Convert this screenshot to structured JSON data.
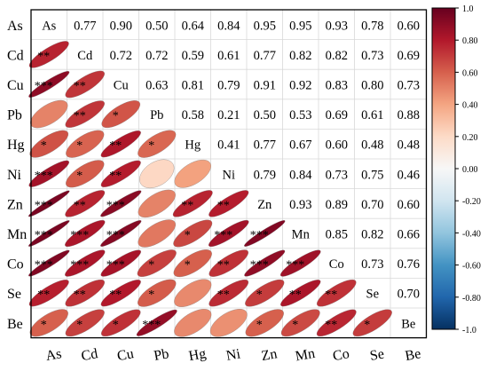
{
  "chart_data": {
    "type": "heatmap",
    "variables": [
      "As",
      "Cd",
      "Cu",
      "Pb",
      "Hg",
      "Ni",
      "Zn",
      "Mn",
      "Co",
      "Se",
      "Be"
    ],
    "upper_values": [
      [
        "As",
        "0.77",
        "0.90",
        "0.50",
        "0.64",
        "0.84",
        "0.95",
        "0.95",
        "0.93",
        "0.78",
        "0.60"
      ],
      [
        "",
        "Cd",
        "0.72",
        "0.72",
        "0.59",
        "0.61",
        "0.77",
        "0.82",
        "0.82",
        "0.73",
        "0.69"
      ],
      [
        "",
        "",
        "Cu",
        "0.63",
        "0.81",
        "0.79",
        "0.91",
        "0.92",
        "0.83",
        "0.80",
        "0.73"
      ],
      [
        "",
        "",
        "",
        "Pb",
        "0.58",
        "0.21",
        "0.50",
        "0.53",
        "0.69",
        "0.61",
        "0.88"
      ],
      [
        "",
        "",
        "",
        "",
        "Hg",
        "0.41",
        "0.77",
        "0.67",
        "0.60",
        "0.48",
        "0.48"
      ],
      [
        "",
        "",
        "",
        "",
        "",
        "Ni",
        "0.79",
        "0.84",
        "0.73",
        "0.75",
        "0.46"
      ],
      [
        "",
        "",
        "",
        "",
        "",
        "",
        "Zn",
        "0.93",
        "0.89",
        "0.70",
        "0.60"
      ],
      [
        "",
        "",
        "",
        "",
        "",
        "",
        "",
        "Mn",
        "0.85",
        "0.82",
        "0.66"
      ],
      [
        "",
        "",
        "",
        "",
        "",
        "",
        "",
        "",
        "Co",
        "0.73",
        "0.76"
      ],
      [
        "",
        "",
        "",
        "",
        "",
        "",
        "",
        "",
        "",
        "Se",
        "0.70"
      ],
      [
        "",
        "",
        "",
        "",
        "",
        "",
        "",
        "",
        "",
        "",
        "Be"
      ]
    ],
    "lower_significance": [
      [
        "",
        "",
        "",
        "",
        "",
        "",
        "",
        "",
        "",
        "",
        ""
      ],
      [
        "**",
        "",
        "",
        "",
        "",
        "",
        "",
        "",
        "",
        "",
        ""
      ],
      [
        "***",
        "**",
        "",
        "",
        "",
        "",
        "",
        "",
        "",
        "",
        ""
      ],
      [
        "",
        "**",
        "*",
        "",
        "",
        "",
        "",
        "",
        "",
        "",
        ""
      ],
      [
        "*",
        "*",
        "**",
        "*",
        "",
        "",
        "",
        "",
        "",
        "",
        ""
      ],
      [
        "***",
        "*",
        "**",
        "",
        "",
        "",
        "",
        "",
        "",
        "",
        ""
      ],
      [
        "***",
        "**",
        "***",
        "",
        "**",
        "**",
        "",
        "",
        "",
        "",
        ""
      ],
      [
        "***",
        "***",
        "***",
        "",
        "*",
        "***",
        "***",
        "",
        "",
        "",
        ""
      ],
      [
        "***",
        "***",
        "***",
        "*",
        "*",
        "**",
        "***",
        "***",
        "",
        "",
        ""
      ],
      [
        "**",
        "**",
        "**",
        "*",
        "",
        "**",
        "*",
        "**",
        "**",
        "",
        ""
      ],
      [
        "*",
        "*",
        "*",
        "***",
        "",
        "",
        "*",
        "*",
        "**",
        "*",
        ""
      ]
    ],
    "colorbar": {
      "min": -1.0,
      "max": 1.0,
      "ticks": [
        "1.0",
        "0.80",
        "0.60",
        "0.40",
        "0.20",
        "0.00",
        "-0.20",
        "-0.40",
        "-0.60",
        "-0.80",
        "-1.0"
      ],
      "colors": [
        "#053061",
        "#2166ac",
        "#4393c3",
        "#92c5de",
        "#d1e5f0",
        "#f7f7f7",
        "#fddbc7",
        "#f4a582",
        "#d6604d",
        "#b2182b",
        "#67001f"
      ]
    }
  }
}
